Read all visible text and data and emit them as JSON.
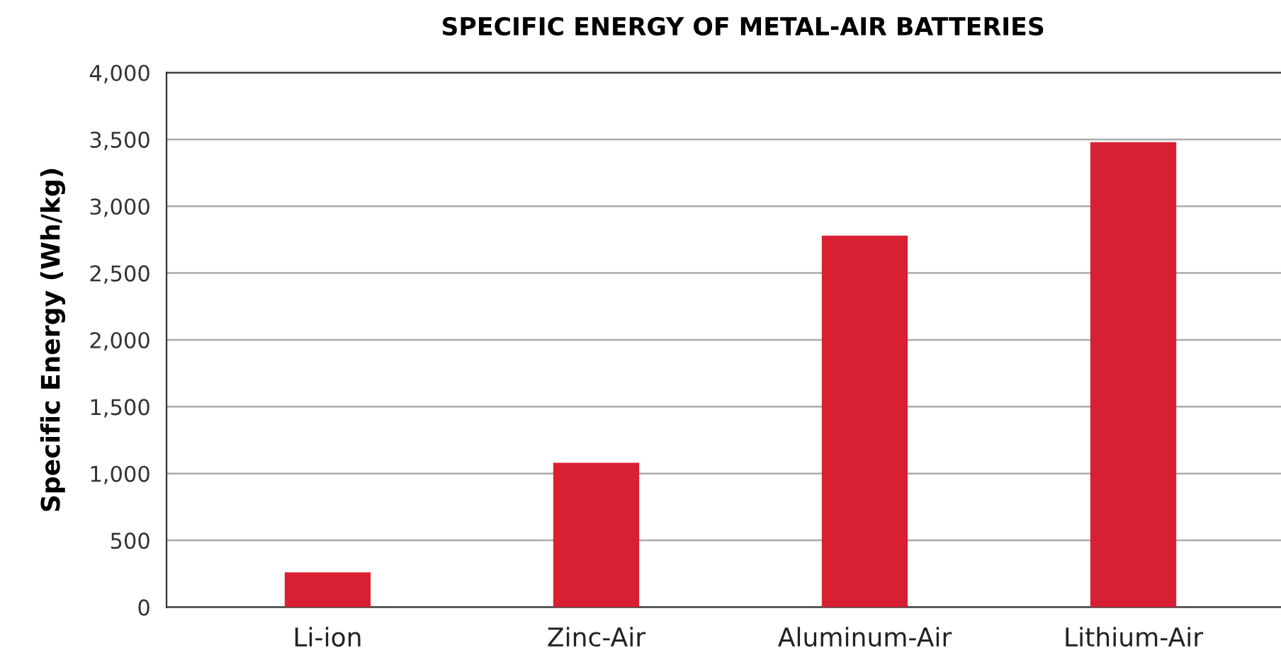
{
  "chart_data": {
    "type": "bar",
    "title": "SPECIFIC ENERGY OF METAL-AIR BATTERIES",
    "ylabel": "Specific Energy (Wh/kg)",
    "categories": [
      "Li-ion",
      "Zinc-Air",
      "Aluminum-Air",
      "Lithium-Air"
    ],
    "values": [
      260,
      1080,
      2780,
      3480
    ],
    "color": "#d91f32",
    "ylim": [
      0,
      4000
    ],
    "yticks": [
      {
        "value": 0,
        "label": "0"
      },
      {
        "value": 500,
        "label": "500"
      },
      {
        "value": 1000,
        "label": "1,000"
      },
      {
        "value": 1500,
        "label": "1,500"
      },
      {
        "value": 2000,
        "label": "2,000"
      },
      {
        "value": 2500,
        "label": "2,500"
      },
      {
        "value": 3000,
        "label": "3,000"
      },
      {
        "value": 3500,
        "label": "3,500"
      },
      {
        "value": 4000,
        "label": "4,000"
      }
    ],
    "grid": "y",
    "legend": false
  }
}
